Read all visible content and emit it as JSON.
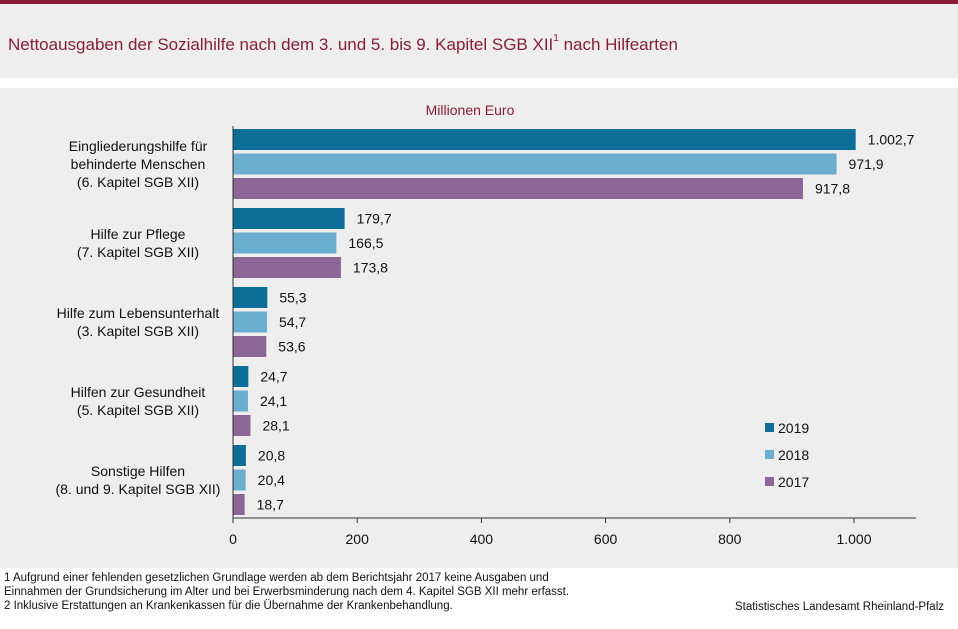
{
  "header": {
    "title": "Nettoausgaben der Sozialhilfe nach dem 3. und 5. bis 9. Kapitel SGB XII",
    "title_sup": "1",
    "title_suffix": " nach Hilfearten"
  },
  "colors": {
    "brand": "#8b1d3a",
    "series_2019": "#0d6e9a",
    "series_2018": "#6aaecf",
    "series_2017": "#8b6696"
  },
  "chart_data": {
    "type": "bar",
    "orientation": "horizontal",
    "unit_label": "Millionen Euro",
    "categories": [
      [
        "Eingliederungshilfe für",
        "behinderte Menschen",
        "(6. Kapitel SGB XII)"
      ],
      [
        "Hilfe zur Pflege",
        "(7. Kapitel SGB XII)"
      ],
      [
        "Hilfe zum Lebensunterhalt",
        "(3. Kapitel SGB XII)"
      ],
      [
        "Hilfen zur Gesundheit",
        "(5. Kapitel SGB XII)"
      ],
      [
        "Sonstige Hilfen",
        "(8. und 9. Kapitel SGB XII)"
      ]
    ],
    "series": [
      {
        "name": "2019",
        "color": "#0d6e9a",
        "values": [
          1002.7,
          179.7,
          55.3,
          24.7,
          20.8
        ],
        "labels": [
          "1.002,7",
          "179,7",
          "55,3",
          "24,7",
          "20,8"
        ]
      },
      {
        "name": "2018",
        "color": "#6aaecf",
        "values": [
          971.9,
          166.5,
          54.7,
          24.1,
          20.4
        ],
        "labels": [
          "971,9",
          "166,5",
          "54,7",
          "24,1",
          "20,4"
        ]
      },
      {
        "name": "2017",
        "color": "#8b6696",
        "values": [
          917.8,
          173.8,
          53.6,
          28.1,
          18.7
        ],
        "labels": [
          "917,8",
          "173,8",
          "53,6",
          "28,1",
          "18,7"
        ]
      }
    ],
    "xlim": [
      0,
      1100
    ],
    "ticks": [
      0,
      200,
      400,
      600,
      800,
      1000
    ],
    "tick_labels": [
      "0",
      "200",
      "400",
      "600",
      "800",
      "1.000"
    ],
    "legend_position": "bottom-right",
    "grid": false
  },
  "footnotes": {
    "line1": "1  Aufgrund  einer fehlenden  gesetzlichen Grundlage  werden  ab dem  Berichtsjahr 2017  keine  Ausgaben  und",
    "line2": "Einnahmen  der Grundsicherung  im Alter und bei Erwerbsminderung  nach dem 4. Kapitel SGB XII  mehr erfasst.",
    "line3": "2 Inklusive  Erstattungen an Krankenkassen  für die  Übernahme  der Krankenbehandlung."
  },
  "source": "Statistisches Landesamt Rheinland-Pfalz"
}
